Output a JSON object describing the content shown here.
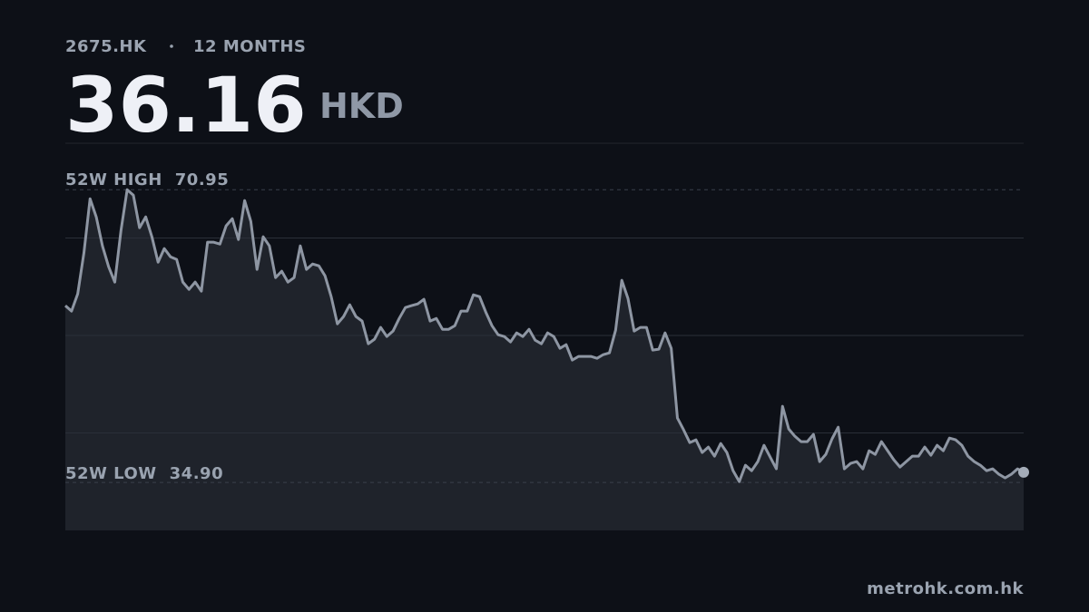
{
  "ticker": "2675.HK",
  "period": "12 MONTHS",
  "price": 36.16,
  "currency": "HKD",
  "source": "metrohk.com.hk",
  "chart_data": {
    "type": "area",
    "values": [
      56.67,
      56.0,
      58.12,
      63.14,
      69.83,
      67.6,
      64.03,
      61.46,
      59.57,
      65.93,
      70.95,
      70.28,
      66.26,
      67.6,
      65.15,
      62.02,
      63.7,
      62.69,
      62.36,
      59.57,
      58.67,
      59.57,
      58.45,
      64.48,
      64.48,
      64.25,
      66.49,
      67.38,
      64.81,
      69.61,
      67.04,
      61.13,
      65.15,
      64.03,
      60.12,
      60.91,
      59.57,
      60.12,
      64.03,
      61.13,
      61.8,
      61.58,
      60.35,
      57.78,
      54.43,
      55.33,
      56.78,
      55.33,
      54.77,
      51.98,
      52.54,
      53.99,
      52.87,
      53.54,
      55.1,
      56.44,
      56.67,
      56.89,
      57.45,
      54.77,
      55.1,
      53.76,
      53.76,
      54.21,
      56.0,
      56.0,
      58.0,
      57.78,
      55.88,
      54.21,
      53.09,
      52.87,
      52.2,
      53.32,
      52.87,
      53.76,
      52.42,
      51.98,
      53.32,
      52.87,
      51.42,
      51.87,
      49.97,
      50.42,
      50.42,
      50.42,
      50.19,
      50.64,
      50.86,
      53.65,
      59.79,
      57.56,
      53.54,
      53.99,
      53.99,
      51.2,
      51.31,
      53.32,
      51.42,
      42.83,
      41.38,
      39.81,
      40.15,
      38.59,
      39.26,
      38.14,
      39.7,
      38.59,
      36.35,
      35.01,
      37.02,
      36.35,
      37.47,
      39.48,
      38.03,
      36.58,
      44.28,
      41.49,
      40.59,
      39.93,
      39.93,
      40.82,
      37.47,
      38.36,
      40.26,
      41.71,
      36.58,
      37.25,
      37.47,
      36.58,
      38.81,
      38.36,
      39.93,
      38.81,
      37.69,
      36.8,
      37.47,
      38.14,
      38.14,
      39.26,
      38.25,
      39.48,
      38.81,
      40.37,
      40.15,
      39.48,
      38.14,
      37.47,
      37.02,
      36.35,
      36.58,
      35.91,
      35.46,
      35.91,
      36.58,
      36.16
    ],
    "color": "#8e96a3",
    "fill": "#1f232b",
    "ylim": [
      29,
      77
    ],
    "yticks": [
      41,
      53,
      65
    ],
    "grid": true,
    "high_label": "52W HIGH",
    "high": 70.95,
    "low_label": "52W LOW",
    "low": {
      "value": 34.9,
      "label": "34.90"
    }
  }
}
